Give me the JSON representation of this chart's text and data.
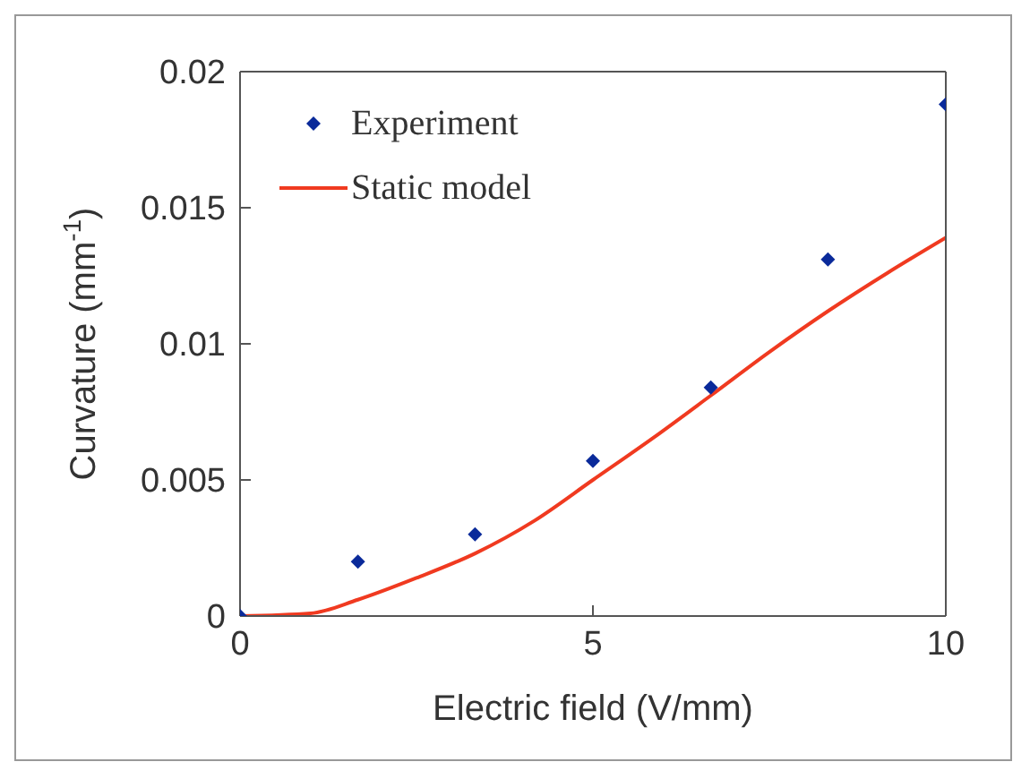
{
  "chart_data": {
    "type": "scatter",
    "xlabel": "Electric field (V/mm)",
    "ylabel": "Curvature (mm$^{-1}$)",
    "xlim": [
      0,
      10
    ],
    "ylim": [
      0,
      0.02
    ],
    "xticks": [
      0,
      5,
      10
    ],
    "yticks": [
      0,
      0.005,
      0.01,
      0.015,
      0.02
    ],
    "grid": false,
    "legend": "top left",
    "marker": "diamond",
    "series": [
      {
        "name": "Experiment",
        "color": "#0a2a9a",
        "x": [
          0,
          1.67,
          3.33,
          5,
          6.67,
          8.33,
          10
        ],
        "values": [
          0,
          0.002,
          0.003,
          0.0057,
          0.0084,
          0.0131,
          0.0188
        ]
      },
      {
        "name": "Static model",
        "type": "line",
        "color": "#f03a20",
        "marker": "none",
        "line_style": "solid",
        "x": [
          0,
          1,
          1.67,
          2.5,
          3.33,
          4.17,
          5,
          5.83,
          6.67,
          7.5,
          8.33,
          9.17,
          10
        ],
        "values": [
          0,
          0.0001,
          0.0006,
          0.0014,
          0.0023,
          0.0035,
          0.005,
          0.0065,
          0.0081,
          0.0097,
          0.0112,
          0.0126,
          0.0139
        ]
      }
    ]
  }
}
